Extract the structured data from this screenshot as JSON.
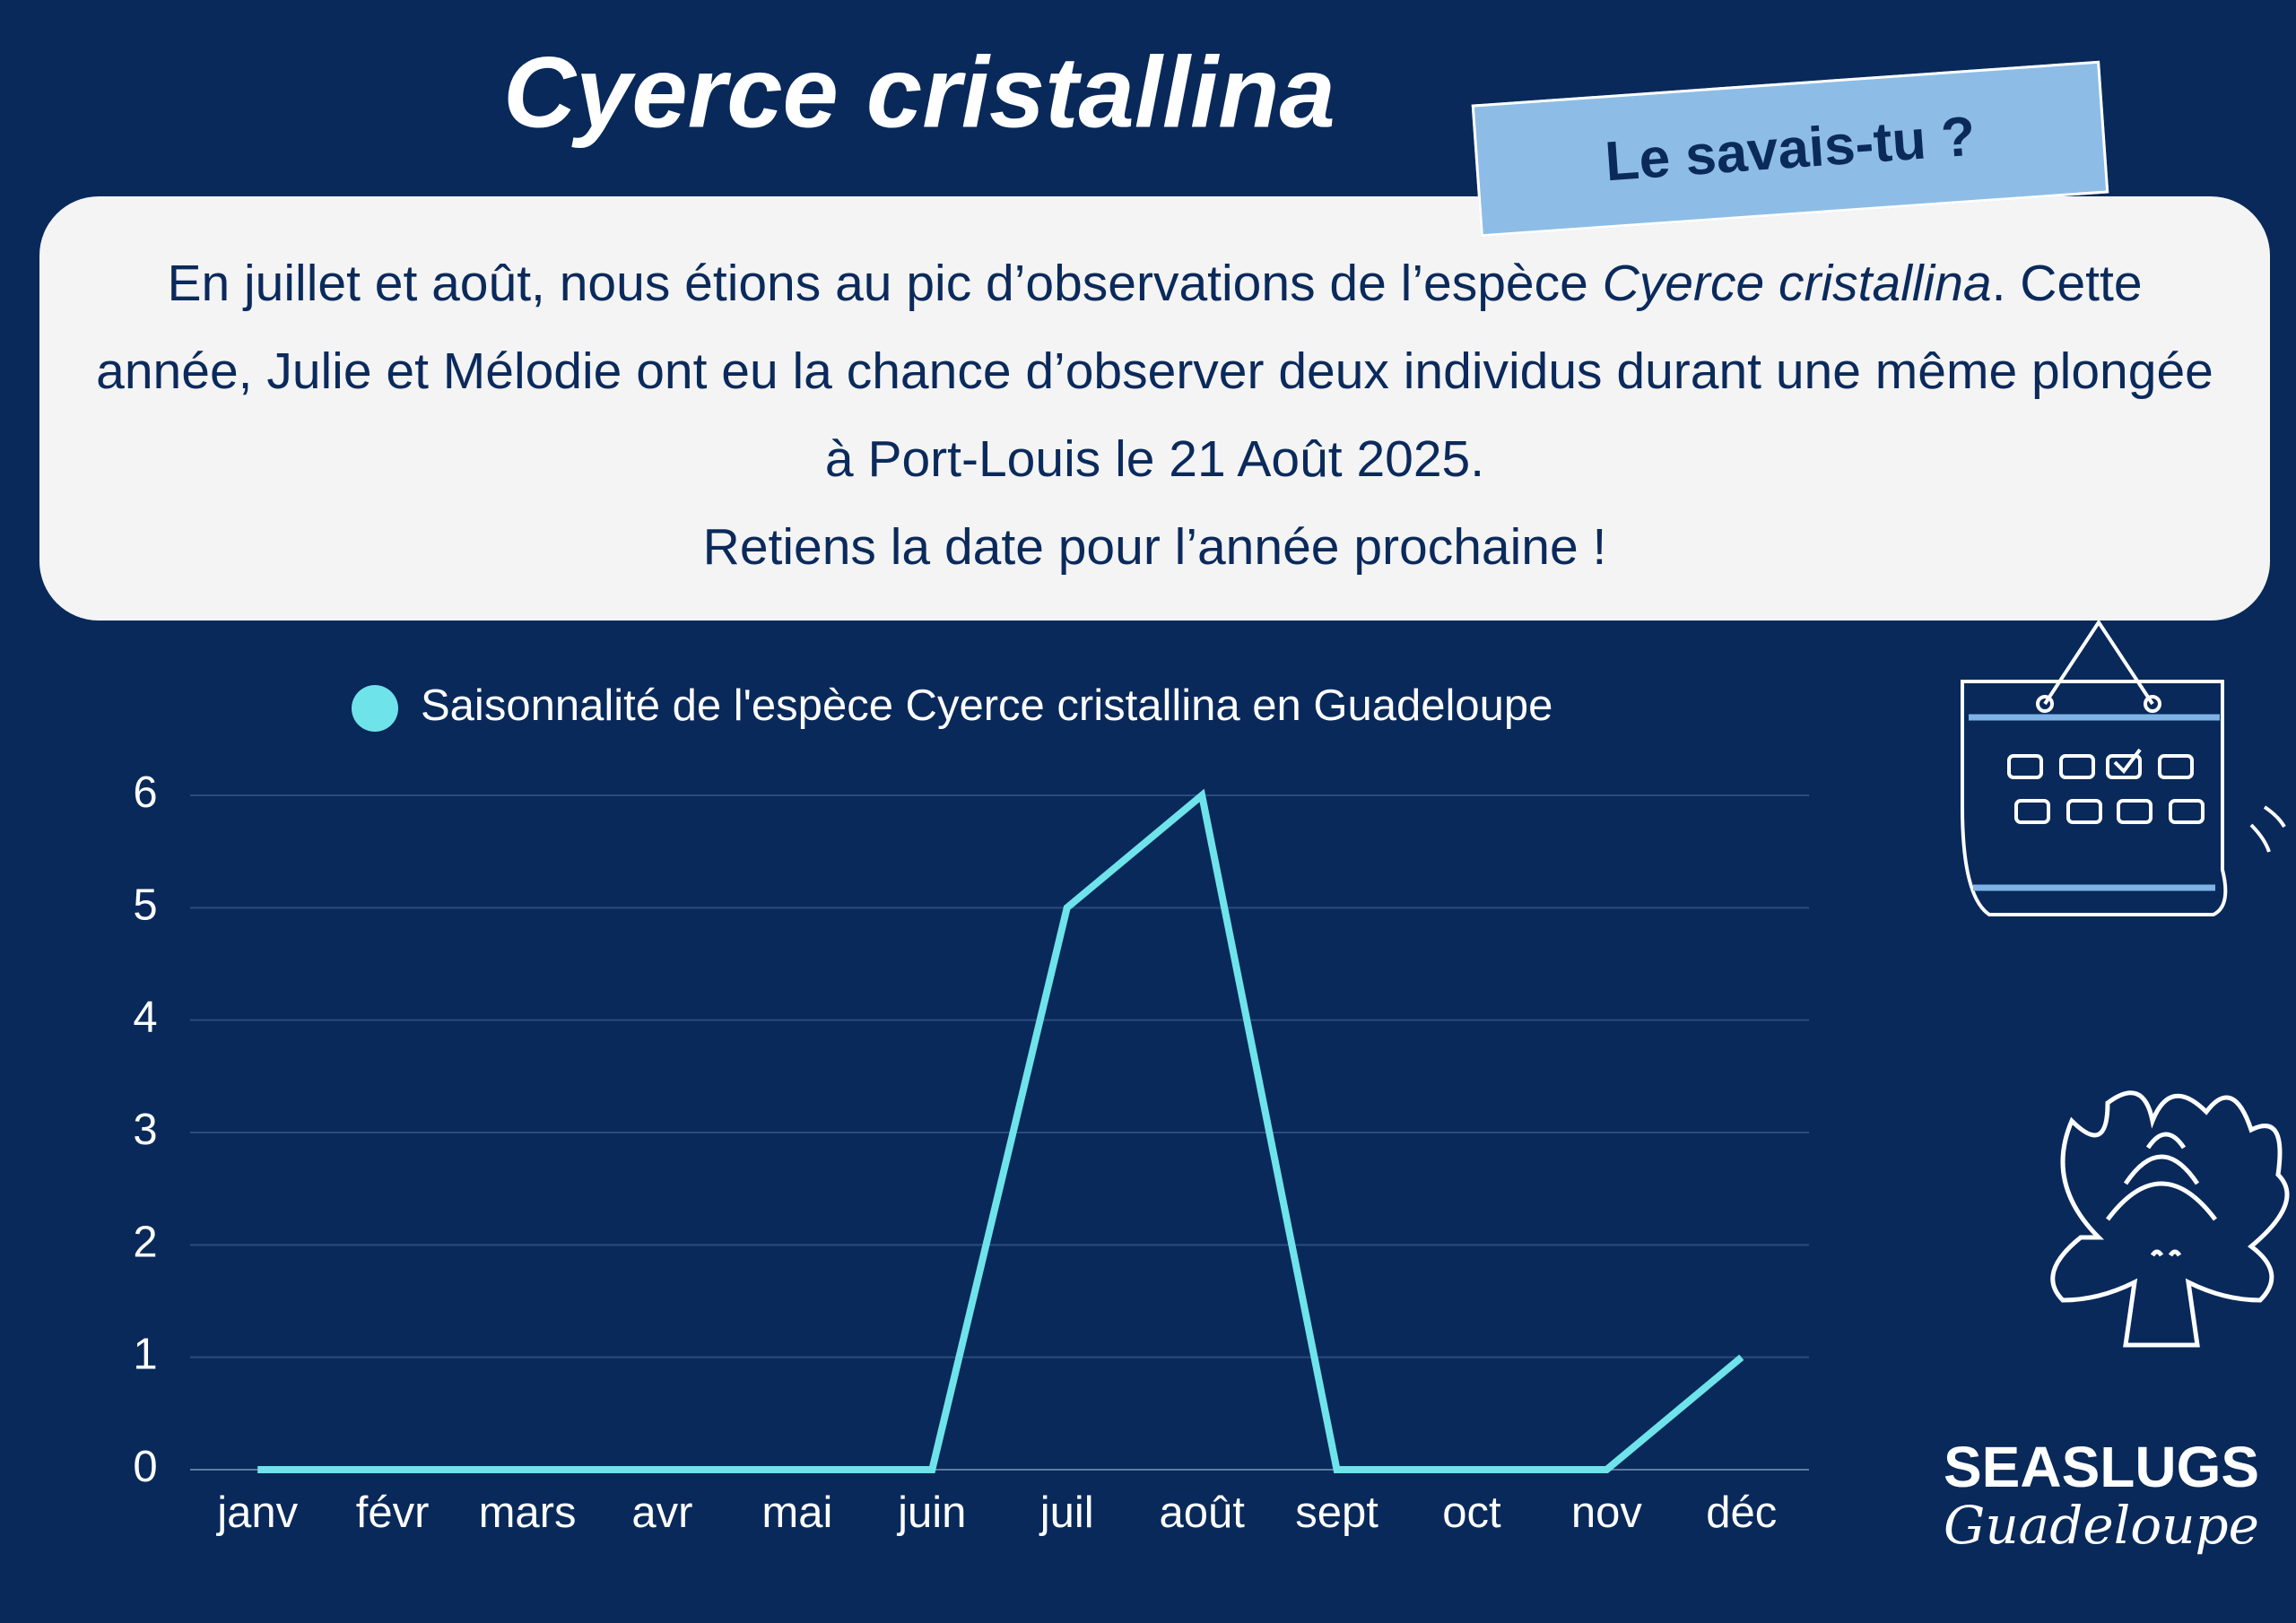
{
  "header": {
    "title": "Cyerce cristallina"
  },
  "callout": {
    "tag": "Le savais-tu ?",
    "paragraph": [
      "En juillet et août, nous étions au pic d’observations de l’espèce ",
      "Cyerce cristallina",
      ". Cette année, Julie et Mélodie ont eu la chance d’observer deux individus durant une même plongée à Port-Louis le 21 Août 2025.",
      "Retiens la date pour l’année prochaine !"
    ]
  },
  "chart_data": {
    "type": "line",
    "categories": [
      "janv",
      "févr",
      "mars",
      "avr",
      "mai",
      "juin",
      "juil",
      "août",
      "sept",
      "oct",
      "nov",
      "déc"
    ],
    "series": [
      {
        "name": "Saisonnalité de l'espèce Cyerce cristallina en Guadeloupe",
        "color": "#6fe3ea",
        "values": [
          0,
          0,
          0,
          0,
          0,
          0,
          5,
          6,
          0,
          0,
          0,
          1
        ]
      }
    ],
    "ylim": [
      0,
      6
    ],
    "yticks": [
      0,
      1,
      2,
      3,
      4,
      5,
      6
    ],
    "grid": true
  },
  "logo": {
    "name": "SEASLUGS",
    "subtitle": "Guadeloupe"
  }
}
